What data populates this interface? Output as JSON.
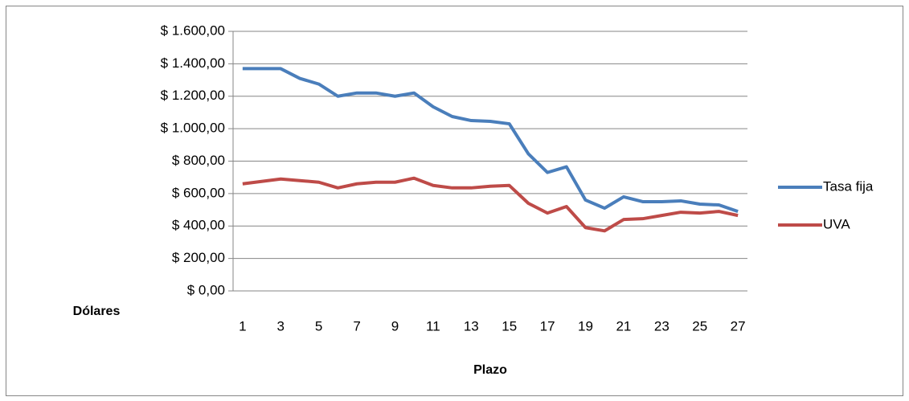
{
  "chart_data": {
    "type": "line",
    "x_label": "Plazo",
    "y_label": "Dólares",
    "categories": [
      1,
      null,
      3,
      null,
      5,
      null,
      7,
      null,
      9,
      null,
      11,
      null,
      13,
      null,
      15,
      null,
      17,
      null,
      19,
      null,
      21,
      null,
      23,
      null,
      25,
      null,
      27
    ],
    "series": [
      {
        "name": "Tasa fija",
        "color": "#4a7ebb",
        "values": [
          1370,
          1370,
          1370,
          1310,
          1275,
          1200,
          1220,
          1220,
          1200,
          1220,
          1135,
          1075,
          1050,
          1045,
          1030,
          845,
          730,
          765,
          560,
          510,
          580,
          550,
          550,
          555,
          535,
          530,
          490
        ]
      },
      {
        "name": "UVA",
        "color": "#be4b48",
        "values": [
          660,
          675,
          690,
          680,
          670,
          635,
          660,
          670,
          670,
          695,
          650,
          635,
          635,
          645,
          650,
          540,
          480,
          520,
          390,
          370,
          440,
          445,
          465,
          485,
          480,
          490,
          465
        ]
      }
    ],
    "ylim": [
      0,
      1600
    ],
    "yticks": [
      {
        "value": 0,
        "label": "$ 0,00"
      },
      {
        "value": 200,
        "label": "$ 200,00"
      },
      {
        "value": 400,
        "label": "$ 400,00"
      },
      {
        "value": 600,
        "label": "$ 600,00"
      },
      {
        "value": 800,
        "label": "$ 800,00"
      },
      {
        "value": 1000,
        "label": "$ 1.000,00"
      },
      {
        "value": 1200,
        "label": "$ 1.200,00"
      },
      {
        "value": 1400,
        "label": "$ 1.400,00"
      },
      {
        "value": 1600,
        "label": "$ 1.600,00"
      }
    ],
    "grid": true,
    "legend": "right"
  }
}
